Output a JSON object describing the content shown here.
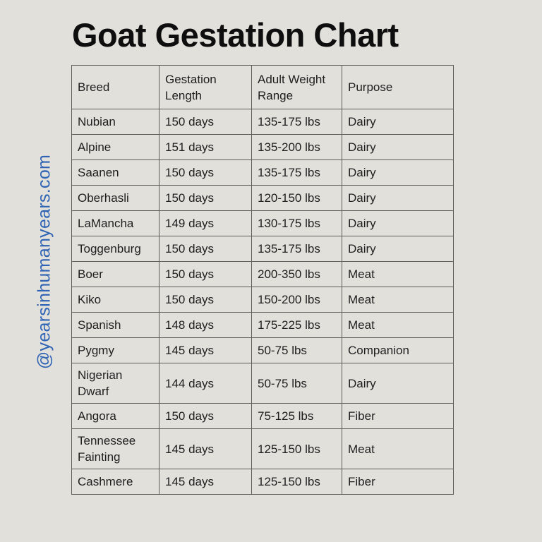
{
  "page": {
    "title": "Goat Gestation Chart",
    "watermark": "@yearsinhumanyears.com",
    "colors": {
      "background": "#E2E0DB",
      "table_border": "#5E5D59",
      "text": "#1E1E1E",
      "title": "#0E0E0E",
      "watermark": "#2F63B4"
    }
  },
  "chart_data": {
    "type": "table",
    "title": "Goat Gestation Chart",
    "columns": [
      "Breed",
      "Gestation Length",
      "Adult Weight Range",
      "Purpose"
    ],
    "rows": [
      [
        "Nubian",
        "150 days",
        "135-175 lbs",
        "Dairy"
      ],
      [
        "Alpine",
        "151 days",
        "135-200 lbs",
        "Dairy"
      ],
      [
        "Saanen",
        "150 days",
        "135-175 lbs",
        "Dairy"
      ],
      [
        "Oberhasli",
        "150 days",
        "120-150 lbs",
        "Dairy"
      ],
      [
        "LaMancha",
        "149 days",
        "130-175 lbs",
        "Dairy"
      ],
      [
        "Toggenburg",
        "150 days",
        "135-175 lbs",
        "Dairy"
      ],
      [
        "Boer",
        "150 days",
        "200-350 lbs",
        "Meat"
      ],
      [
        "Kiko",
        "150 days",
        "150-200 lbs",
        "Meat"
      ],
      [
        "Spanish",
        "148 days",
        "175-225 lbs",
        "Meat"
      ],
      [
        "Pygmy",
        "145 days",
        "50-75 lbs",
        "Companion"
      ],
      [
        "Nigerian Dwarf",
        "144 days",
        "50-75 lbs",
        "Dairy"
      ],
      [
        "Angora",
        "150 days",
        "75-125 lbs",
        "Fiber"
      ],
      [
        "Tennessee Fainting",
        "145 days",
        "125-150 lbs",
        "Meat"
      ],
      [
        "Cashmere",
        "145 days",
        "125-150 lbs",
        "Fiber"
      ]
    ]
  }
}
